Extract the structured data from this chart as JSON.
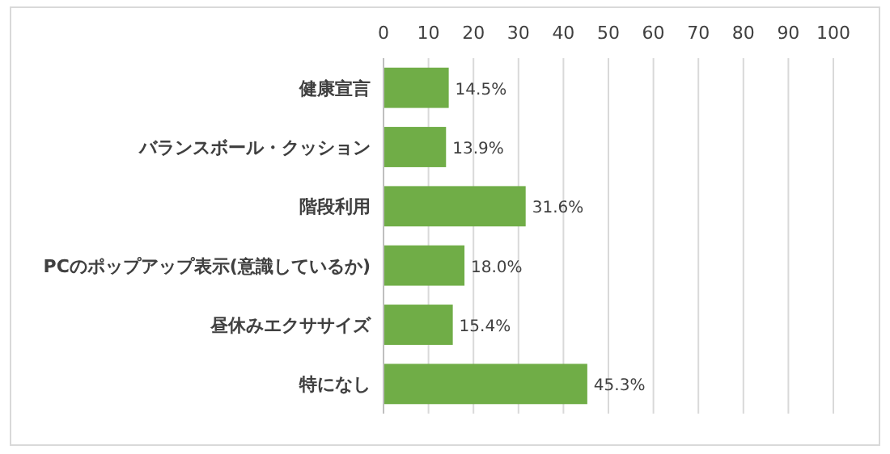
{
  "chart_data": {
    "type": "bar",
    "orientation": "horizontal",
    "categories": [
      "健康宣言",
      "バランスボール・クッション",
      "階段利用",
      "PCのポップアップ表示(意識しているか)",
      "昼休みエクササイズ",
      "特になし"
    ],
    "values": [
      14.5,
      13.9,
      31.6,
      18.0,
      15.4,
      45.3
    ],
    "value_labels": [
      "14.5%",
      "13.9%",
      "31.6%",
      "18.0%",
      "15.4%",
      "45.3%"
    ],
    "color": "#70ad47",
    "xlim": [
      0,
      100
    ],
    "xticks": [
      0,
      10,
      20,
      30,
      40,
      50,
      60,
      70,
      80,
      90,
      100
    ],
    "grid": "x"
  }
}
